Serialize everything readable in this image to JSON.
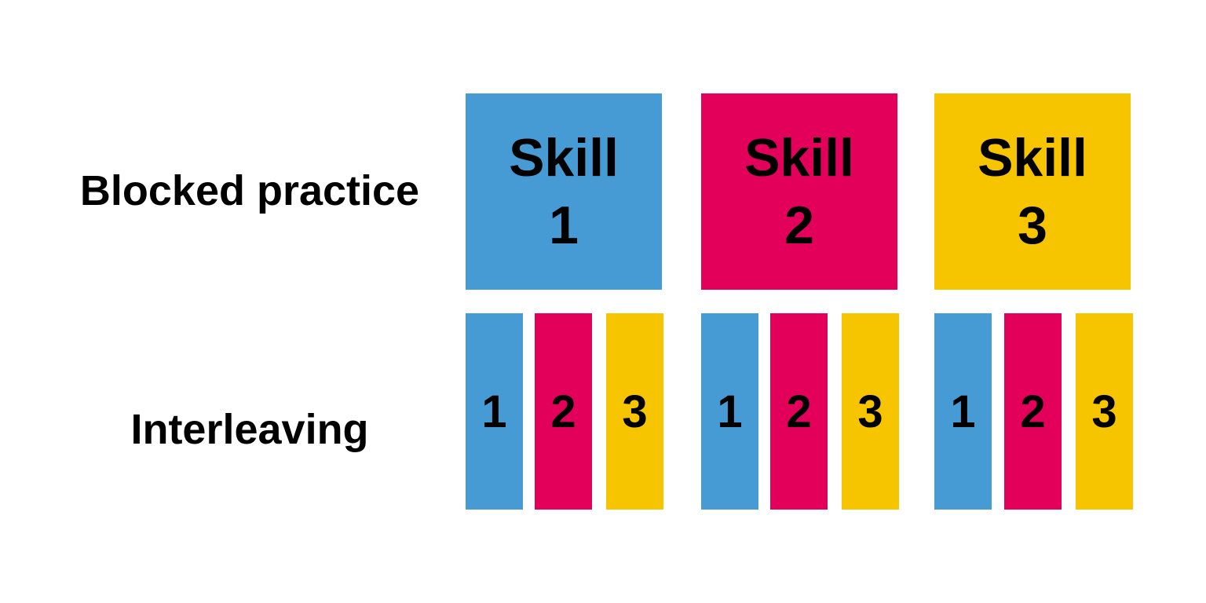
{
  "colors": {
    "skill_1": "#479bd4",
    "skill_2": "#e3005b",
    "skill_3": "#f6c500"
  },
  "labels": {
    "blocked": "Blocked practice",
    "interleaving": "Interleaving"
  },
  "blocked": [
    {
      "word": "Skill",
      "number": "1",
      "color_key": "skill_1"
    },
    {
      "word": "Skill",
      "number": "2",
      "color_key": "skill_2"
    },
    {
      "word": "Skill",
      "number": "3",
      "color_key": "skill_3"
    }
  ],
  "interleaving": [
    {
      "number": "1",
      "color_key": "skill_1"
    },
    {
      "number": "2",
      "color_key": "skill_2"
    },
    {
      "number": "3",
      "color_key": "skill_3"
    },
    {
      "number": "1",
      "color_key": "skill_1"
    },
    {
      "number": "2",
      "color_key": "skill_2"
    },
    {
      "number": "3",
      "color_key": "skill_3"
    },
    {
      "number": "1",
      "color_key": "skill_1"
    },
    {
      "number": "2",
      "color_key": "skill_2"
    },
    {
      "number": "3",
      "color_key": "skill_3"
    }
  ]
}
